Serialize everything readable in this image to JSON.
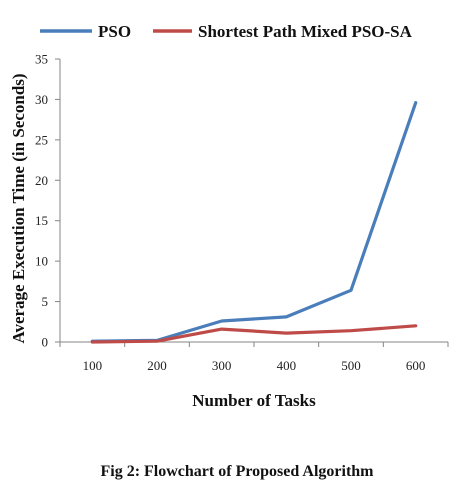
{
  "chart_data": {
    "type": "line",
    "title": "",
    "xlabel": "Number of Tasks",
    "ylabel": "Average Execution Time (in Seconds)",
    "categories": [
      "100",
      "200",
      "300",
      "400",
      "500",
      "600"
    ],
    "ylim": [
      0,
      35
    ],
    "yticks": [
      "0",
      "5",
      "10",
      "15",
      "20",
      "25",
      "30",
      "35"
    ],
    "grid": false,
    "legend_position": "top",
    "series": [
      {
        "name": "PSO",
        "color": "#4a7ebb",
        "values": [
          0.1,
          0.2,
          2.6,
          3.1,
          6.4,
          29.6
        ]
      },
      {
        "name": "Shortest Path Mixed PSO-SA",
        "color": "#be4b48",
        "values": [
          0.0,
          0.1,
          1.6,
          1.1,
          1.4,
          2.0
        ]
      }
    ]
  },
  "caption": "Fig 2: Flowchart of Proposed Algorithm"
}
